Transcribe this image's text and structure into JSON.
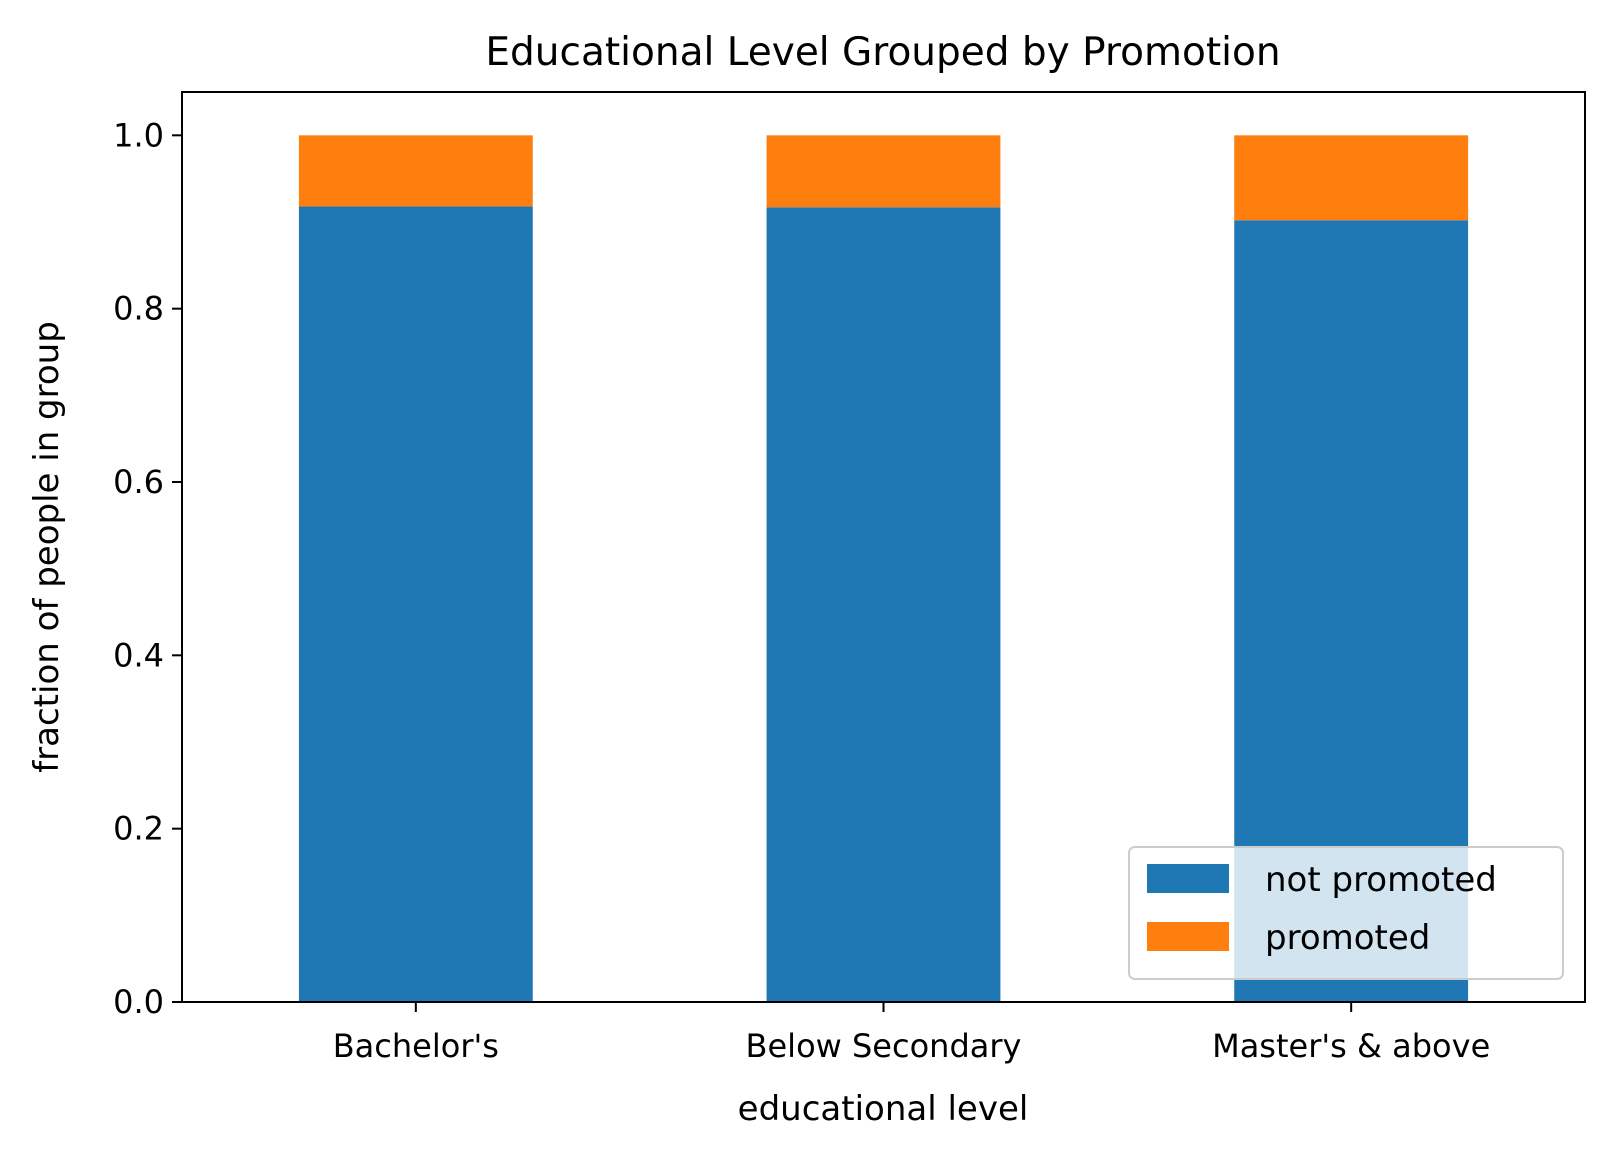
{
  "chart_data": {
    "type": "bar",
    "stacked": true,
    "title": "Educational Level Grouped by Promotion",
    "xlabel": "educational level",
    "ylabel": "fraction of people in group",
    "categories": [
      "Bachelor's",
      "Below Secondary",
      "Master's & above"
    ],
    "series": [
      {
        "name": "not promoted",
        "color": "#1f77b4",
        "values": [
          0.918,
          0.917,
          0.902
        ]
      },
      {
        "name": "promoted",
        "color": "#ff7f0e",
        "values": [
          0.082,
          0.083,
          0.098
        ]
      }
    ],
    "ylim": [
      0,
      1.05
    ],
    "yticks": [
      "0.0",
      "0.2",
      "0.4",
      "0.6",
      "0.8",
      "1.0"
    ],
    "grid": false,
    "legend_position": "lower right"
  }
}
